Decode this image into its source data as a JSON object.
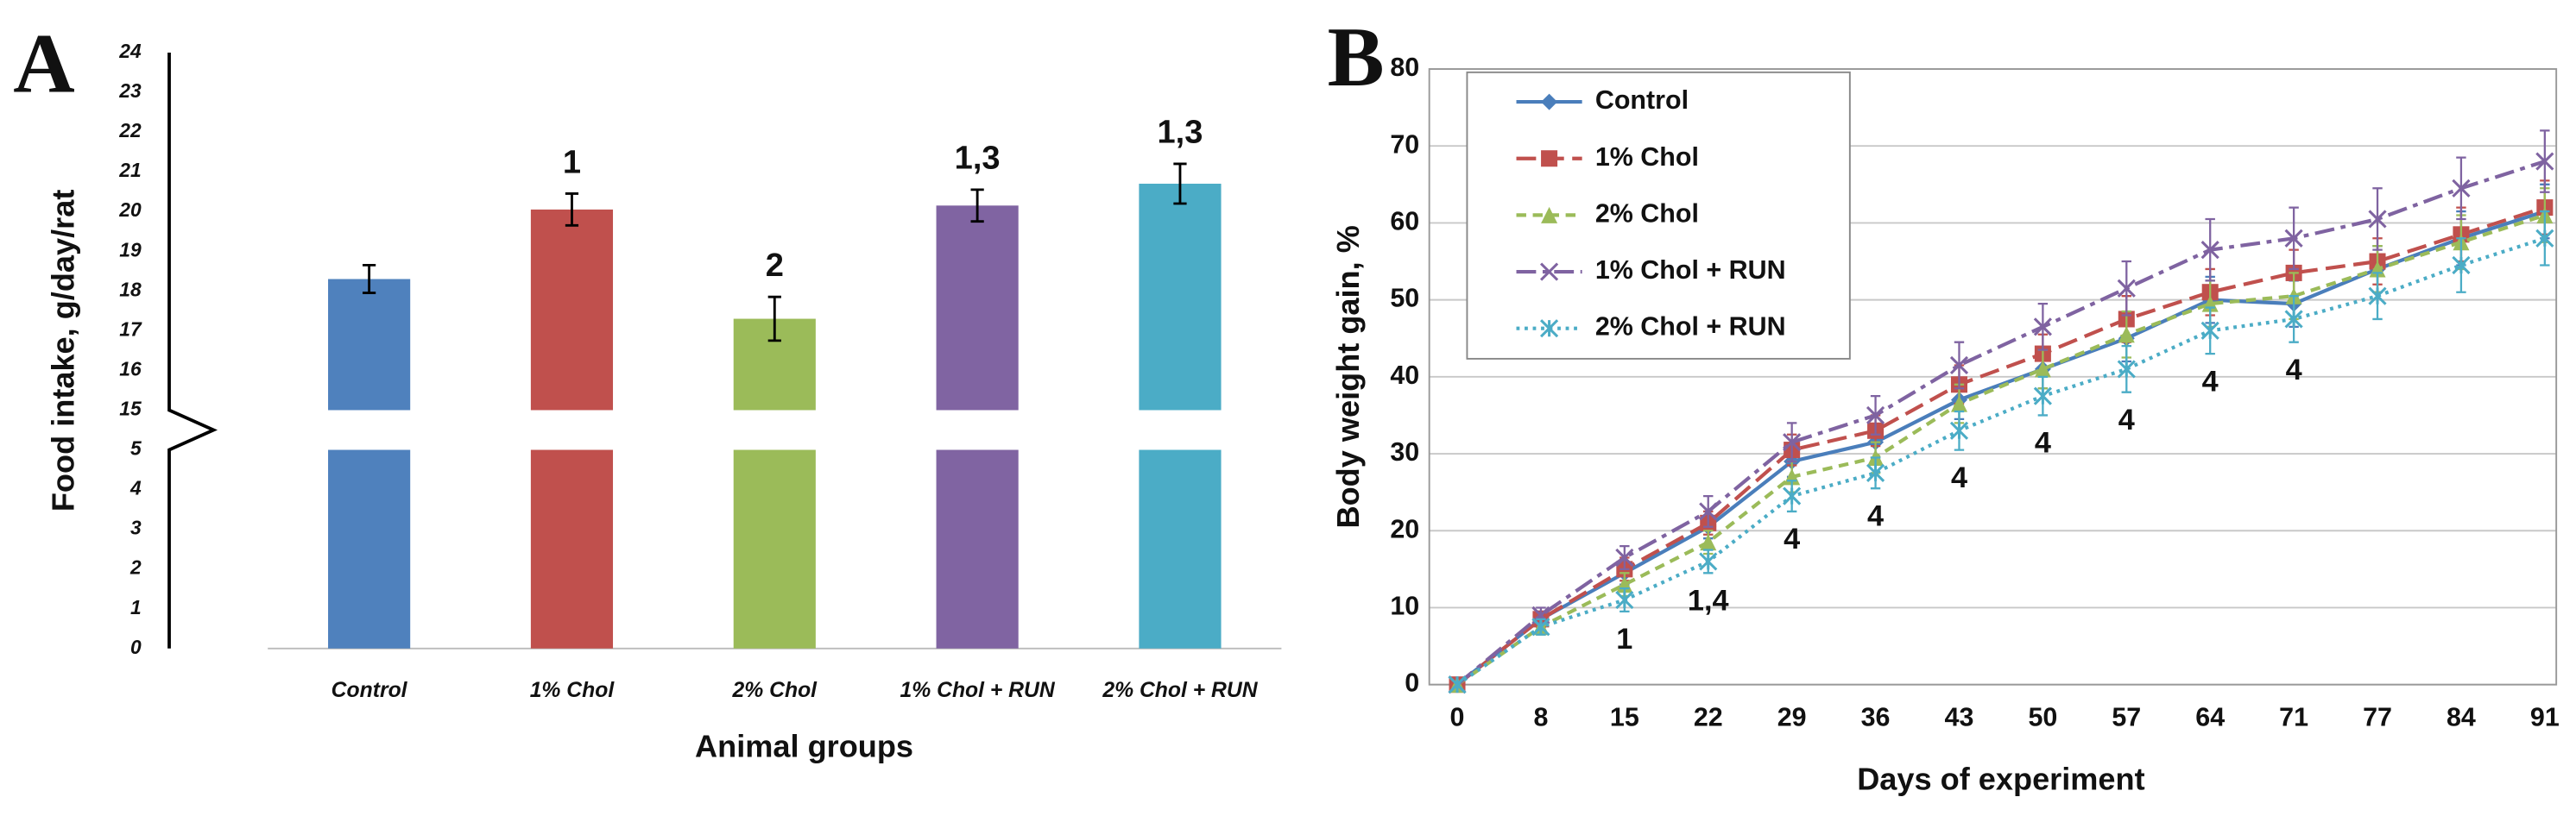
{
  "chart_data": [
    {
      "type": "bar",
      "panel_label": "A",
      "x_label": "Animal groups",
      "y_label": "Food intake, g/day/rat",
      "categories": [
        "Control",
        "1% Chol",
        "2% Chol",
        "1% Chol + RUN",
        "2% Chol + RUN"
      ],
      "values": [
        18.3,
        20.05,
        17.3,
        20.15,
        20.7
      ],
      "errors": [
        0.35,
        0.4,
        0.55,
        0.4,
        0.5
      ],
      "annotations": [
        null,
        "1",
        "2",
        "1,3",
        "1,3"
      ],
      "colors": [
        "#4f81bd",
        "#c0504d",
        "#9bbb59",
        "#8064a2",
        "#4bacc6"
      ],
      "ylim": [
        0,
        24
      ],
      "axis_break": [
        5,
        15
      ],
      "yticks": [
        0,
        1,
        2,
        3,
        4,
        5,
        15,
        16,
        17,
        18,
        19,
        20,
        21,
        22,
        23,
        24
      ]
    },
    {
      "type": "line",
      "panel_label": "B",
      "x_label": "Days of experiment",
      "y_label": "Body weight gain, %",
      "categories": [
        0,
        8,
        15,
        22,
        29,
        36,
        43,
        50,
        57,
        64,
        71,
        77,
        84,
        91
      ],
      "ylim": [
        0,
        80
      ],
      "yticks": [
        0,
        10,
        20,
        30,
        40,
        50,
        60,
        70,
        80
      ],
      "grid": true,
      "legend": "upper left",
      "annotations": [
        null,
        null,
        "1",
        "1,4",
        "4",
        "4",
        "4",
        "4",
        "4",
        "4",
        "4",
        null,
        null,
        null
      ],
      "series": [
        {
          "name": "Control",
          "color": "#4a7ebb",
          "marker": "diamond",
          "line_style": "solid",
          "values": [
            0,
            8.5,
            14.5,
            20.5,
            29,
            31.5,
            37,
            41,
            45,
            50,
            49.5,
            54,
            58,
            61.5
          ],
          "errors": [
            0,
            1,
            1.5,
            1.5,
            2,
            2,
            2.5,
            2.5,
            3,
            3,
            3,
            3,
            3.5,
            3.5
          ]
        },
        {
          "name": "1% Chol",
          "color": "#c0504d",
          "marker": "square",
          "line_style": "dashed",
          "values": [
            0,
            8.5,
            15,
            21,
            30.5,
            33,
            39,
            43,
            47.5,
            51,
            53.5,
            55,
            58.5,
            62
          ],
          "errors": [
            0,
            1,
            1.5,
            1.5,
            2,
            2,
            2.5,
            2.5,
            3,
            3,
            3,
            3,
            3.5,
            3.5
          ]
        },
        {
          "name": "2% Chol",
          "color": "#9bbb59",
          "marker": "triangle",
          "line_style": "short-dashed",
          "values": [
            0,
            7.5,
            13,
            18.5,
            27,
            29.5,
            36.5,
            41,
            45.5,
            49.5,
            50.5,
            54,
            57.5,
            61
          ],
          "errors": [
            0,
            1,
            1.5,
            1.5,
            2,
            2,
            2.5,
            2.5,
            3,
            3,
            3,
            3,
            3.5,
            3.5
          ]
        },
        {
          "name": "1% Chol + RUN",
          "color": "#7f63a1",
          "marker": "x",
          "line_style": "dash-dot",
          "values": [
            0,
            9,
            16.5,
            22.5,
            31.5,
            35,
            41.5,
            46.5,
            51.5,
            56.5,
            58,
            60.5,
            64.5,
            68
          ],
          "errors": [
            0,
            1,
            1.5,
            2,
            2.5,
            2.5,
            3,
            3,
            3.5,
            4,
            4,
            4,
            4,
            4
          ]
        },
        {
          "name": "2% Chol + RUN",
          "color": "#4bacc6",
          "marker": "asterisk",
          "line_style": "dotted",
          "values": [
            0,
            7.5,
            11,
            16,
            24.5,
            27.5,
            33,
            37.5,
            41,
            46,
            47.5,
            50.5,
            54.5,
            58
          ],
          "errors": [
            0,
            1,
            1.5,
            1.5,
            2,
            2,
            2.5,
            2.5,
            3,
            3,
            3,
            3,
            3.5,
            3.5
          ]
        }
      ]
    }
  ]
}
